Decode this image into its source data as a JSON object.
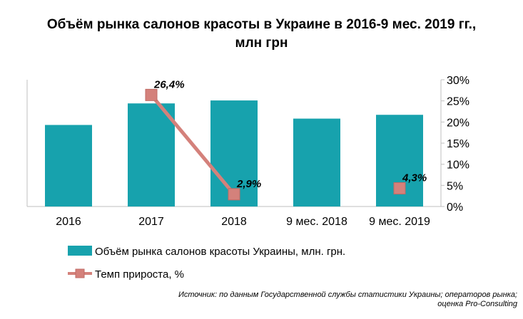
{
  "title": {
    "line1": "Объём рынка салонов красоты в Украине в 2016-9 мес. 2019 гг.,",
    "line2": "млн грн"
  },
  "chart_data": {
    "type": "bar",
    "categories": [
      "2016",
      "2017",
      "2018",
      "9 мес. 2018",
      "9 мес. 2019"
    ],
    "series": [
      {
        "name": "Объём рынка салонов красоты Украины, млн. грн.",
        "type": "bar",
        "axis": "left",
        "values": [
          19.3,
          24.4,
          25.1,
          20.8,
          21.7
        ],
        "color": "#17a2ad"
      },
      {
        "name": "Темп прироста, %",
        "type": "line",
        "axis": "right",
        "values": [
          null,
          26.4,
          2.9,
          null,
          4.3
        ],
        "labels": [
          null,
          "26,4%",
          "2,9%",
          null,
          "4,3%"
        ],
        "color": "#d4817b"
      }
    ],
    "right_axis": {
      "ylim": [
        0,
        30
      ],
      "ticks": [
        "0%",
        "5%",
        "10%",
        "15%",
        "20%",
        "25%",
        "30%"
      ]
    },
    "left_axis_visible": false,
    "grid": false,
    "legend_position": "bottom"
  },
  "source": {
    "line1": "Источник: по данным Государственной службы статистики Украины; операторов рынка;",
    "line2": "оценка Pro-Consulting"
  }
}
